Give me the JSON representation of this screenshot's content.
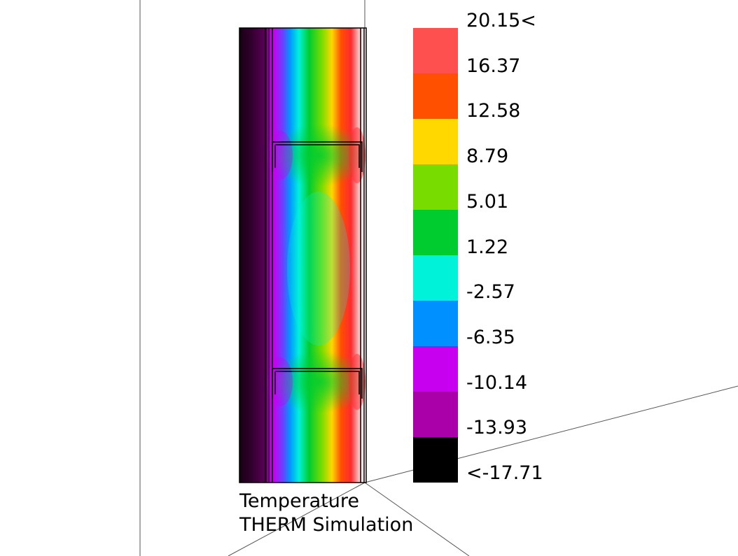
{
  "caption": {
    "line1": "Temperature",
    "line2": "THERM Simulation"
  },
  "legend": {
    "labels": [
      "20.15<",
      "16.37",
      "12.58",
      "8.79",
      "5.01",
      "1.22",
      "-2.57",
      "-6.35",
      "-10.14",
      "-13.93",
      "<-17.71"
    ],
    "bands": [
      {
        "color": "#ff5050"
      },
      {
        "color": "#ff5000"
      },
      {
        "color": "#ffd800"
      },
      {
        "color": "#78dc00"
      },
      {
        "color": "#00cc30"
      },
      {
        "color": "#00f2d8"
      },
      {
        "color": "#0090ff"
      },
      {
        "color": "#c800f0"
      },
      {
        "color": "#aa00aa"
      },
      {
        "color": "#000000"
      }
    ]
  }
}
